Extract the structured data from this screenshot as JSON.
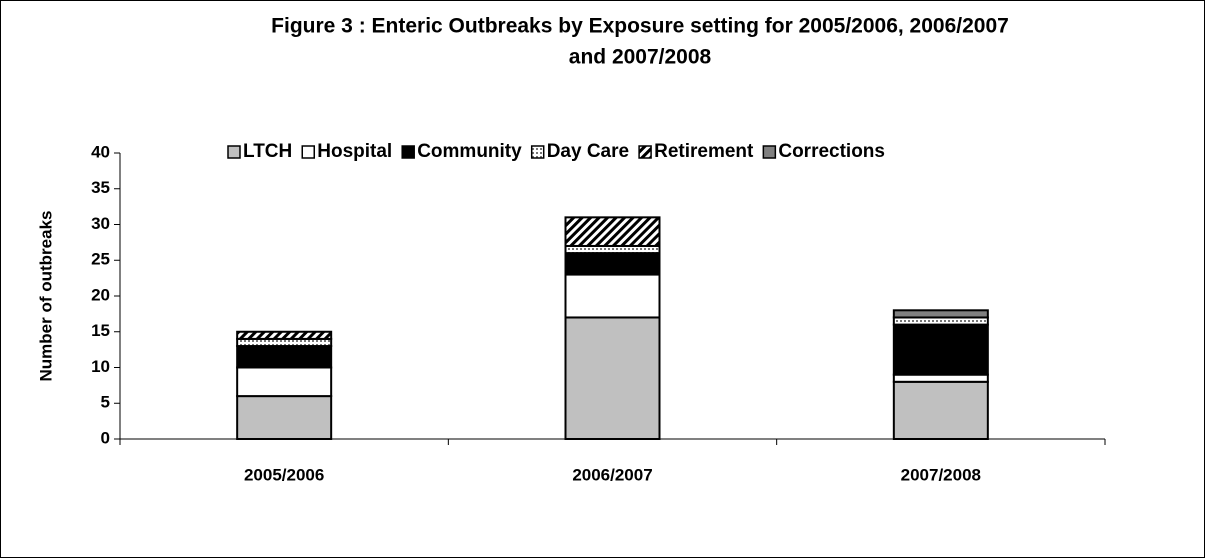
{
  "chart_data": {
    "type": "stacked_bar",
    "title": [
      "Figure 3 : Enteric Outbreaks by Exposure setting for 2005/2006, 2006/2007",
      "and 2007/2008"
    ],
    "y_label": "Number of outbreaks",
    "categories": [
      "2005/2006",
      "2006/2007",
      "2007/2008"
    ],
    "series": [
      {
        "name": "LTCH",
        "color": "#c0c0c0",
        "values": [
          6,
          17,
          8
        ]
      },
      {
        "name": "Hospital",
        "color": "#ffffff",
        "values": [
          4,
          6,
          1
        ]
      },
      {
        "name": "Community",
        "color": "#000000",
        "values": [
          3,
          3,
          7
        ]
      },
      {
        "name": "Day Care",
        "color": "#ffffff",
        "pattern": "dots",
        "values": [
          1,
          1,
          1
        ]
      },
      {
        "name": "Retirement",
        "color": "#ffffff",
        "pattern": "hatch",
        "values": [
          1,
          4,
          0
        ]
      },
      {
        "name": "Corrections",
        "color": "#808080",
        "values": [
          0,
          0,
          1
        ]
      }
    ],
    "ylim": [
      0,
      40
    ],
    "yticks": [
      0,
      5,
      10,
      15,
      20,
      25,
      30,
      35,
      40
    ],
    "legend": "top",
    "grid": false
  }
}
